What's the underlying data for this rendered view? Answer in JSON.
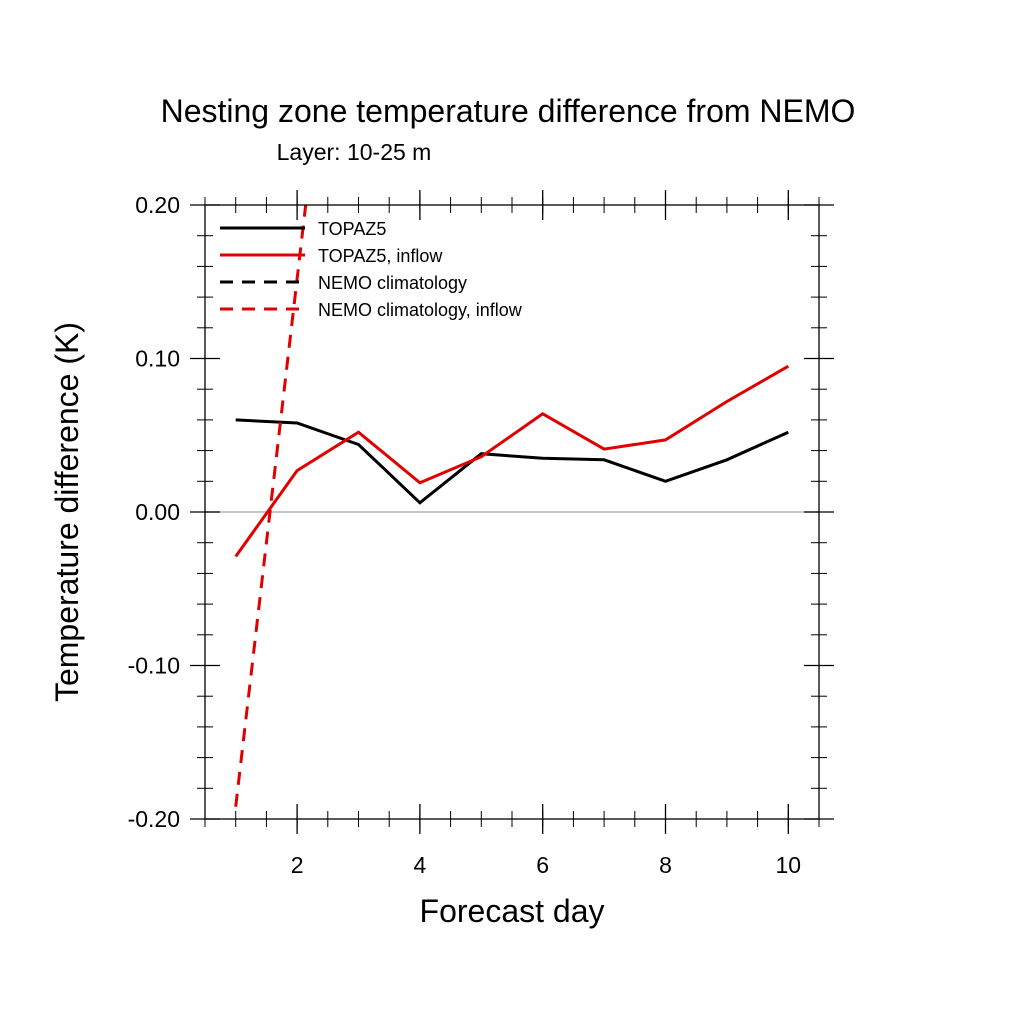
{
  "chart_data": {
    "type": "line",
    "title": "Nesting zone temperature difference from NEMO",
    "subtitle": "Layer: 10-25 m",
    "xlabel": "Forecast day",
    "ylabel": "Temperature difference (K)",
    "xlim": [
      0.5,
      10.5
    ],
    "ylim": [
      -0.2,
      0.2
    ],
    "x_ticks": [
      2,
      4,
      6,
      8,
      10
    ],
    "x_tick_labels": [
      "2",
      "4",
      "6",
      "8",
      "10"
    ],
    "y_ticks": [
      -0.2,
      -0.1,
      0.0,
      0.1,
      0.2
    ],
    "y_tick_labels": [
      "-0.20",
      "-0.10",
      "0.00",
      "0.10",
      "0.20"
    ],
    "zero_line": true,
    "grid": false,
    "legend_position": "top-left",
    "series": [
      {
        "name": "TOPAZ5",
        "color": "#000000",
        "dash": "solid",
        "x": [
          1,
          2,
          3,
          4,
          5,
          6,
          7,
          8,
          9,
          10
        ],
        "y": [
          0.06,
          0.058,
          0.044,
          0.006,
          0.038,
          0.035,
          0.034,
          0.02,
          0.034,
          0.052
        ]
      },
      {
        "name": "TOPAZ5, inflow",
        "color": "#e00000",
        "dash": "solid",
        "x": [
          1,
          2,
          3,
          4,
          5,
          6,
          7,
          8,
          9,
          10
        ],
        "y": [
          -0.029,
          0.027,
          0.052,
          0.019,
          0.036,
          0.064,
          0.041,
          0.047,
          0.072,
          0.095
        ]
      },
      {
        "name": "NEMO climatology",
        "color": "#000000",
        "dash": "dashed",
        "x": [],
        "y": []
      },
      {
        "name": "NEMO climatology, inflow",
        "color": "#e00000",
        "dash": "dashed",
        "x": [
          1,
          2.14
        ],
        "y": [
          -0.192,
          0.2
        ]
      }
    ]
  }
}
